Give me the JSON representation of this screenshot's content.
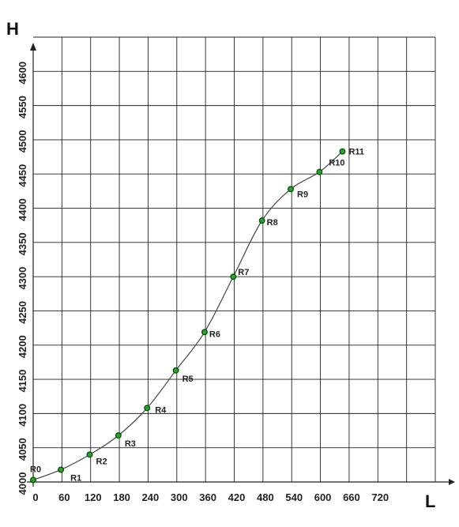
{
  "chart_data": {
    "type": "line",
    "xlabel": "L",
    "ylabel": "H",
    "xlim": [
      0,
      840
    ],
    "ylim": [
      4000,
      4650
    ],
    "x_ticks": [
      0,
      60,
      120,
      180,
      240,
      300,
      360,
      420,
      480,
      540,
      600,
      660,
      720
    ],
    "x_tick_labels": [
      "0",
      "60",
      "120",
      "180",
      "240",
      "300",
      "360",
      "420",
      "480",
      "540",
      "600",
      "660",
      "720"
    ],
    "y_ticks": [
      4000,
      4050,
      4100,
      4150,
      4200,
      4250,
      4300,
      4350,
      4400,
      4450,
      4500,
      4550,
      4600
    ],
    "y_tick_labels": [
      "4000",
      "4050",
      "4100",
      "4150",
      "4200",
      "4250",
      "4300",
      "4350",
      "4400",
      "4450",
      "4500",
      "4550",
      "4600"
    ],
    "grid": true,
    "series": [
      {
        "points": [
          {
            "label": "R0",
            "x": 0,
            "y": 4003
          },
          {
            "label": "R1",
            "x": 58,
            "y": 4018
          },
          {
            "label": "R2",
            "x": 118,
            "y": 4040
          },
          {
            "label": "R3",
            "x": 178,
            "y": 4068
          },
          {
            "label": "R4",
            "x": 238,
            "y": 4108
          },
          {
            "label": "R5",
            "x": 298,
            "y": 4163
          },
          {
            "label": "R6",
            "x": 358,
            "y": 4219
          },
          {
            "label": "R7",
            "x": 418,
            "y": 4300
          },
          {
            "label": "R8",
            "x": 478,
            "y": 4382
          },
          {
            "label": "R9",
            "x": 538,
            "y": 4428
          },
          {
            "label": "R10",
            "x": 598,
            "y": 4453
          },
          {
            "label": "R11",
            "x": 646,
            "y": 4483
          }
        ]
      }
    ],
    "colors": {
      "line": "#444444",
      "marker_fill": "#22aa22",
      "marker_stroke": "#0a4a0a",
      "grid": "#222222"
    }
  }
}
